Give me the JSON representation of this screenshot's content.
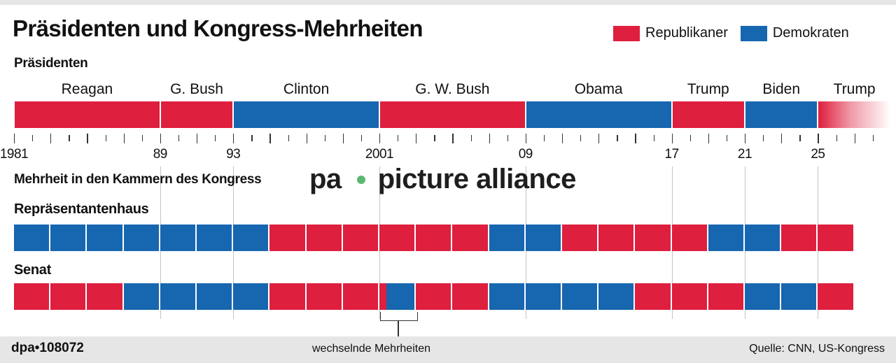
{
  "title": "Präsidenten und Kongress-Mehrheiten",
  "legend": [
    {
      "label": "Republikaner",
      "color": "#de1f3e"
    },
    {
      "label": "Demokraten",
      "color": "#1766b0"
    }
  ],
  "colors": {
    "R": "#de1f3e",
    "D": "#1766b0"
  },
  "sections": {
    "presidents": "Präsidenten",
    "congress": "Mehrheit in den Kammern des Kongress",
    "house": "Repräsentantenhaus",
    "senate": "Senat"
  },
  "watermark": {
    "left": "pa",
    "right": "picture alliance"
  },
  "annotation": "wechselnde Mehrheiten",
  "footer": {
    "id": "dpa•108072",
    "source": "Quelle: CNN, US-Kongress"
  },
  "chart_data": {
    "type": "timeline",
    "title": "Präsidenten und Kongress-Mehrheiten",
    "x_range": [
      1981,
      2030
    ],
    "tick_labels": [
      "1981",
      "89",
      "93",
      "2001",
      "09",
      "17",
      "21",
      "25"
    ],
    "tick_years": [
      1981,
      1989,
      1993,
      2001,
      2009,
      2017,
      2021,
      2025
    ],
    "legend": [
      "Republikaner",
      "Demokraten"
    ],
    "presidents": [
      {
        "name": "Reagan",
        "party": "R",
        "start": 1981,
        "end": 1989
      },
      {
        "name": "G. Bush",
        "party": "R",
        "start": 1989,
        "end": 1993
      },
      {
        "name": "Clinton",
        "party": "D",
        "start": 1993,
        "end": 2001
      },
      {
        "name": "G. W. Bush",
        "party": "R",
        "start": 2001,
        "end": 2009
      },
      {
        "name": "Obama",
        "party": "D",
        "start": 2009,
        "end": 2017
      },
      {
        "name": "Trump",
        "party": "R",
        "start": 2017,
        "end": 2021
      },
      {
        "name": "Biden",
        "party": "D",
        "start": 2021,
        "end": 2025
      },
      {
        "name": "Trump",
        "party": "R",
        "start": 2025,
        "end": 2029,
        "fade": true
      }
    ],
    "house": [
      {
        "start": 1981,
        "party": "D"
      },
      {
        "start": 1983,
        "party": "D"
      },
      {
        "start": 1985,
        "party": "D"
      },
      {
        "start": 1987,
        "party": "D"
      },
      {
        "start": 1989,
        "party": "D"
      },
      {
        "start": 1991,
        "party": "D"
      },
      {
        "start": 1993,
        "party": "D"
      },
      {
        "start": 1995,
        "party": "R"
      },
      {
        "start": 1997,
        "party": "R"
      },
      {
        "start": 1999,
        "party": "R"
      },
      {
        "start": 2001,
        "party": "R"
      },
      {
        "start": 2003,
        "party": "R"
      },
      {
        "start": 2005,
        "party": "R"
      },
      {
        "start": 2007,
        "party": "D"
      },
      {
        "start": 2009,
        "party": "D"
      },
      {
        "start": 2011,
        "party": "R"
      },
      {
        "start": 2013,
        "party": "R"
      },
      {
        "start": 2015,
        "party": "R"
      },
      {
        "start": 2017,
        "party": "R"
      },
      {
        "start": 2019,
        "party": "D"
      },
      {
        "start": 2021,
        "party": "D"
      },
      {
        "start": 2023,
        "party": "R"
      },
      {
        "start": 2025,
        "party": "R"
      }
    ],
    "senate": [
      {
        "start": 1981,
        "party": "R"
      },
      {
        "start": 1983,
        "party": "R"
      },
      {
        "start": 1985,
        "party": "R"
      },
      {
        "start": 1987,
        "party": "D"
      },
      {
        "start": 1989,
        "party": "D"
      },
      {
        "start": 1991,
        "party": "D"
      },
      {
        "start": 1993,
        "party": "D"
      },
      {
        "start": 1995,
        "party": "R"
      },
      {
        "start": 1997,
        "party": "R"
      },
      {
        "start": 1999,
        "party": "R"
      },
      {
        "start": 2001,
        "party": "mixed",
        "note": "wechselnde Mehrheiten",
        "split": [
          {
            "party": "R",
            "share": 0.2
          },
          {
            "party": "D",
            "share": 0.8
          }
        ]
      },
      {
        "start": 2003,
        "party": "R"
      },
      {
        "start": 2005,
        "party": "R"
      },
      {
        "start": 2007,
        "party": "D"
      },
      {
        "start": 2009,
        "party": "D"
      },
      {
        "start": 2011,
        "party": "D"
      },
      {
        "start": 2013,
        "party": "D"
      },
      {
        "start": 2015,
        "party": "R"
      },
      {
        "start": 2017,
        "party": "R"
      },
      {
        "start": 2019,
        "party": "R"
      },
      {
        "start": 2021,
        "party": "D"
      },
      {
        "start": 2023,
        "party": "D"
      },
      {
        "start": 2025,
        "party": "R"
      }
    ]
  }
}
